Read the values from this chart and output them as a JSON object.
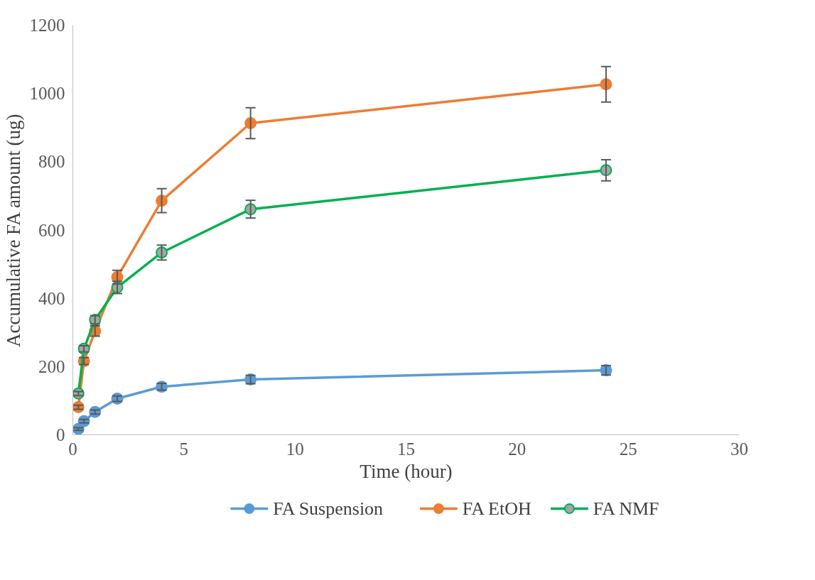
{
  "chart_data": {
    "type": "line",
    "xlabel": "Time (hour)",
    "ylabel": "Accumulative FA amount (ug)",
    "x": [
      0.25,
      0.5,
      1,
      2,
      4,
      8,
      24
    ],
    "series": [
      {
        "name": "FA Suspension",
        "color": "#5b9bd5",
        "values": [
          17,
          40,
          67,
          106,
          141,
          162,
          189
        ],
        "errors": [
          4,
          5,
          6,
          8,
          10,
          12,
          14
        ]
      },
      {
        "name": "FA EtOH",
        "color": "#ed7d31",
        "values": [
          81,
          216,
          304,
          462,
          686,
          913,
          1027
        ],
        "errors": [
          6,
          10,
          15,
          20,
          35,
          45,
          52
        ]
      },
      {
        "name": "FA NMF",
        "color": "#00b050",
        "values": [
          121,
          252,
          337,
          432,
          534,
          661,
          775
        ],
        "errors": [
          6,
          9,
          12,
          18,
          22,
          26,
          31
        ]
      }
    ],
    "xlim": [
      0,
      30
    ],
    "xticks": [
      0,
      5,
      10,
      15,
      20,
      25,
      30
    ],
    "ylim": [
      0,
      1200
    ],
    "yticks": [
      0,
      200,
      400,
      600,
      800,
      1000,
      1200
    ],
    "grid": false,
    "legend": "bottom",
    "marker": "circle",
    "line_style": "solid"
  }
}
